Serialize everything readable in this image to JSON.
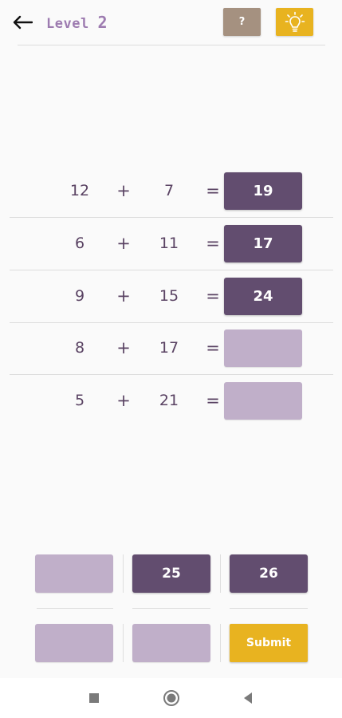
{
  "header": {
    "level_label": "Level",
    "level_number": "2",
    "help_label": "?",
    "back_icon": "arrow-left-icon",
    "hint_icon": "lightbulb-icon"
  },
  "equations": [
    {
      "a": "12",
      "op": "+",
      "b": "7",
      "eq": "=",
      "answer": "19"
    },
    {
      "a": "6",
      "op": "+",
      "b": "11",
      "eq": "=",
      "answer": "17"
    },
    {
      "a": "9",
      "op": "+",
      "b": "15",
      "eq": "=",
      "answer": "24"
    },
    {
      "a": "8",
      "op": "+",
      "b": "17",
      "eq": "=",
      "answer": ""
    },
    {
      "a": "5",
      "op": "+",
      "b": "21",
      "eq": "=",
      "answer": ""
    }
  ],
  "options": {
    "row1": [
      "",
      "25",
      "26"
    ],
    "row2": [
      "",
      ""
    ],
    "submit_label": "Submit"
  },
  "colors": {
    "filled": "#624d6f",
    "empty": "#c0afc9",
    "accent": "#e8b320",
    "help": "#a59180",
    "title": "#9d7bb0"
  },
  "navbar": {
    "recents_icon": "square-icon",
    "home_icon": "circle-icon",
    "back_icon": "triangle-back-icon"
  }
}
